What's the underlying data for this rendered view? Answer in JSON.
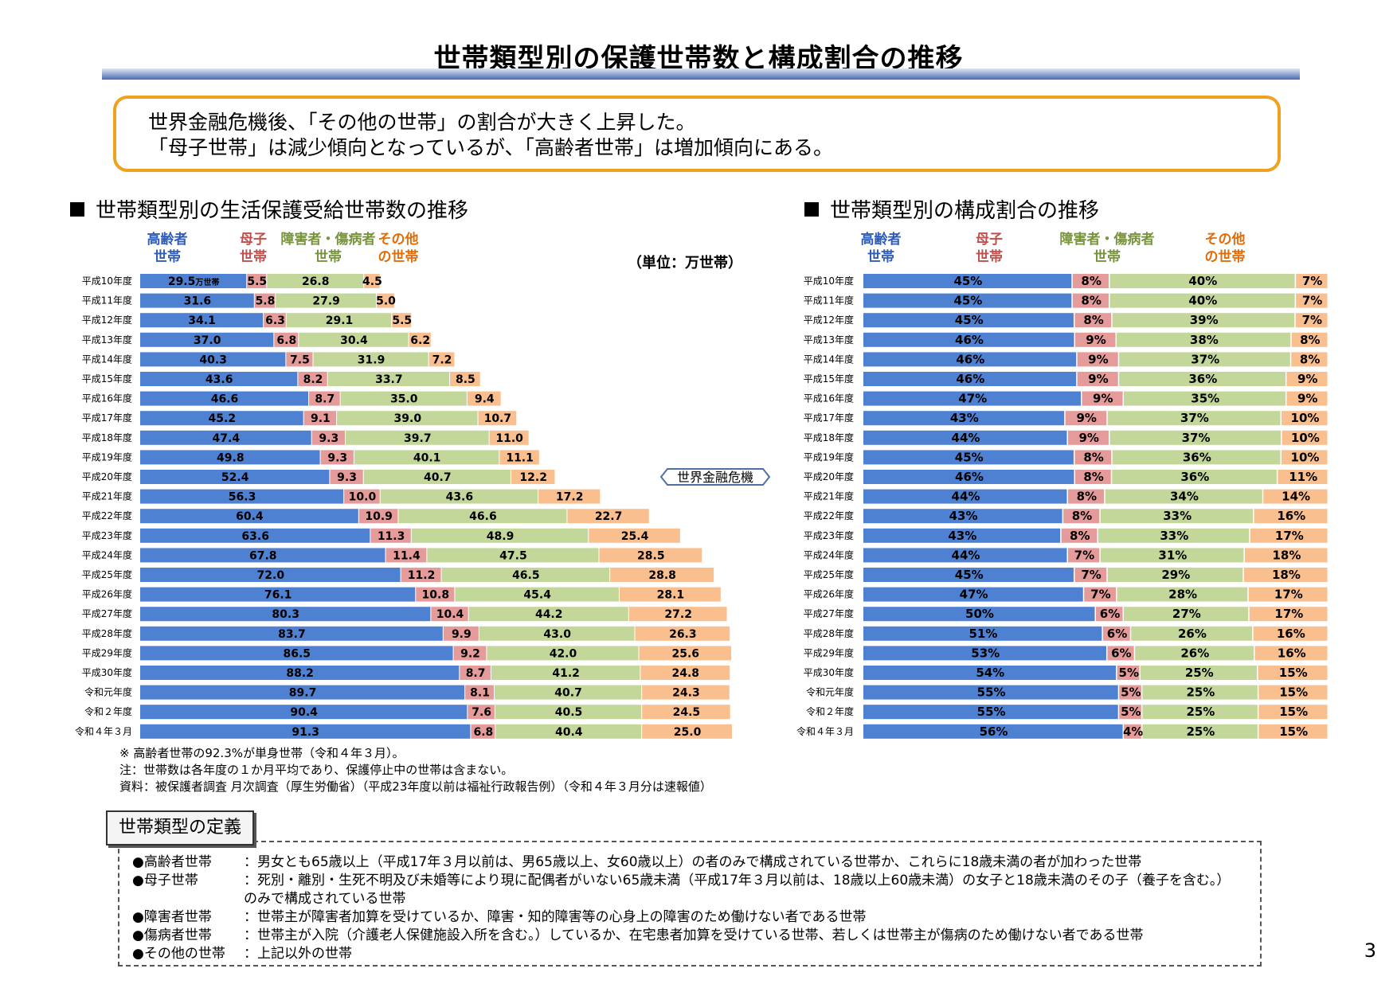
{
  "title": "世帯類型別の保護世帯数と構成割合の推移",
  "callout": {
    "line1": "世界金融危機後、「その他の世帯」の割合が大きく上昇した。",
    "line2": "「母子世帯」は減少傾向となっているが、「高齢者世帯」は増加傾向にある。"
  },
  "left_heading": "世帯類型別の生活保護受給世帯数の推移",
  "right_heading": "世帯類型別の構成割合の推移",
  "colors": {
    "elderly": "#4f81d2",
    "single_mother": "#e59b9a",
    "disabled_sick": "#c4d79b",
    "other": "#f9bf8f",
    "elderly_label": "#2e5cb8",
    "single_mother_label": "#c0504d",
    "disabled_sick_label": "#77933c",
    "other_label": "#e36c09"
  },
  "chart_data": [
    {
      "type": "bar",
      "stacked": true,
      "orientation": "horizontal",
      "title": "世帯類型別の生活保護受給世帯数の推移",
      "unit": "（単位：万世帯）",
      "first_value_suffix": "万世帯",
      "categories": [
        "平成10年度",
        "平成11年度",
        "平成12年度",
        "平成13年度",
        "平成14年度",
        "平成15年度",
        "平成16年度",
        "平成17年度",
        "平成18年度",
        "平成19年度",
        "平成20年度",
        "平成21年度",
        "平成22年度",
        "平成23年度",
        "平成24年度",
        "平成25年度",
        "平成26年度",
        "平成27年度",
        "平成28年度",
        "平成29年度",
        "平成30年度",
        "令和元年度",
        "令和２年度",
        "令和４年３月"
      ],
      "series": [
        {
          "name": "高齢者世帯",
          "values": [
            "29.5",
            "31.6",
            "34.1",
            "37.0",
            "40.3",
            "43.6",
            "46.6",
            "45.2",
            "47.4",
            "49.8",
            "52.4",
            "56.3",
            "60.4",
            "63.6",
            "67.8",
            "72.0",
            "76.1",
            "80.3",
            "83.7",
            "86.5",
            "88.2",
            "89.7",
            "90.4",
            "91.3"
          ]
        },
        {
          "name": "母子世帯",
          "values": [
            "5.5",
            "5.8",
            "6.3",
            "6.8",
            "7.5",
            "8.2",
            "8.7",
            "9.1",
            "9.3",
            "9.3",
            "9.3",
            "10.0",
            "10.9",
            "11.3",
            "11.4",
            "11.2",
            "10.8",
            "10.4",
            "9.9",
            "9.2",
            "8.7",
            "8.1",
            "7.6",
            "6.8"
          ]
        },
        {
          "name": "障害者・傷病者世帯",
          "values": [
            "26.8",
            "27.9",
            "29.1",
            "30.4",
            "31.9",
            "33.7",
            "35.0",
            "39.0",
            "39.7",
            "40.1",
            "40.7",
            "43.6",
            "46.6",
            "48.9",
            "47.5",
            "46.5",
            "45.4",
            "44.2",
            "43.0",
            "42.0",
            "41.2",
            "40.7",
            "40.5",
            "40.4"
          ]
        },
        {
          "name": "その他の世帯",
          "values": [
            "4.5",
            "5.0",
            "5.5",
            "6.2",
            "7.2",
            "8.5",
            "9.4",
            "10.7",
            "11.0",
            "11.1",
            "12.2",
            "17.2",
            "22.7",
            "25.4",
            "28.5",
            "28.8",
            "28.1",
            "27.2",
            "26.3",
            "25.6",
            "24.8",
            "24.3",
            "24.5",
            "25.0"
          ]
        }
      ],
      "legend_labels": {
        "elderly": [
          "高齢者",
          "世帯"
        ],
        "single_mother": [
          "母子",
          "世帯"
        ],
        "disabled_sick": [
          "障害者・傷病者",
          "世帯"
        ],
        "other": [
          "その他",
          "の世帯"
        ]
      },
      "annotation": {
        "text": "世界金融危機",
        "at_category": "平成20年度"
      }
    },
    {
      "type": "bar",
      "stacked": true,
      "orientation": "horizontal",
      "title": "世帯類型別の構成割合の推移",
      "categories": [
        "平成10年度",
        "平成11年度",
        "平成12年度",
        "平成13年度",
        "平成14年度",
        "平成15年度",
        "平成16年度",
        "平成17年度",
        "平成18年度",
        "平成19年度",
        "平成20年度",
        "平成21年度",
        "平成22年度",
        "平成23年度",
        "平成24年度",
        "平成25年度",
        "平成26年度",
        "平成27年度",
        "平成28年度",
        "平成29年度",
        "平成30年度",
        "令和元年度",
        "令和２年度",
        "令和４年３月"
      ],
      "series": [
        {
          "name": "高齢者世帯",
          "values": [
            45,
            45,
            45,
            46,
            46,
            46,
            47,
            43,
            44,
            45,
            46,
            44,
            43,
            43,
            44,
            45,
            47,
            50,
            51,
            53,
            54,
            55,
            55,
            56
          ]
        },
        {
          "name": "母子世帯",
          "values": [
            8,
            8,
            8,
            9,
            9,
            9,
            9,
            9,
            9,
            8,
            8,
            8,
            8,
            8,
            7,
            7,
            7,
            6,
            6,
            6,
            5,
            5,
            5,
            4
          ]
        },
        {
          "name": "障害者・傷病者世帯",
          "values": [
            40,
            40,
            39,
            38,
            37,
            36,
            35,
            37,
            37,
            36,
            36,
            34,
            33,
            33,
            31,
            29,
            28,
            27,
            26,
            26,
            25,
            25,
            25,
            25
          ]
        },
        {
          "name": "その他の世帯",
          "values": [
            7,
            7,
            7,
            8,
            8,
            9,
            9,
            10,
            10,
            10,
            11,
            14,
            16,
            17,
            18,
            18,
            17,
            17,
            16,
            16,
            15,
            15,
            15,
            15
          ]
        }
      ],
      "value_suffix": "%",
      "legend_labels": {
        "elderly": [
          "高齢者",
          "世帯"
        ],
        "single_mother": [
          "母子",
          "世帯"
        ],
        "disabled_sick": [
          "障害者・傷病者",
          "世帯"
        ],
        "other": [
          "その他",
          "の世帯"
        ]
      }
    }
  ],
  "notes": [
    "※ 高齢者世帯の92.3%が単身世帯（令和４年３月）。",
    "注：世帯数は各年度の１か月平均であり、保護停止中の世帯は含まない。",
    "資料：被保護者調査 月次調査（厚生労働省）（平成23年度以前は福祉行政報告例）（令和４年３月分は速報値）"
  ],
  "definitions": {
    "tab_label": "世帯類型の定義",
    "items": [
      {
        "term": "●高齢者世帯",
        "desc": "：男女とも65歳以上（平成17年３月以前は、男65歳以上、女60歳以上）の者のみで構成されている世帯か、これらに18歳未満の者が加わった世帯"
      },
      {
        "term": "●母子世帯",
        "desc": "：死別・離別・生死不明及び未婚等により現に配偶者がいない65歳未満（平成17年３月以前は、18歳以上60歳未満）の女子と18歳未満のその子（養子を含む。）のみで構成されている世帯"
      },
      {
        "term": "●障害者世帯",
        "desc": "：世帯主が障害者加算を受けているか、障害・知的障害等の心身上の障害のため働けない者である世帯"
      },
      {
        "term": "●傷病者世帯",
        "desc": "：世帯主が入院（介護老人保健施設入所を含む。）しているか、在宅患者加算を受けている世帯、若しくは世帯主が傷病のため働けない者である世帯"
      },
      {
        "term": "●その他の世帯",
        "desc": "：上記以外の世帯"
      }
    ]
  },
  "page_number": "3"
}
